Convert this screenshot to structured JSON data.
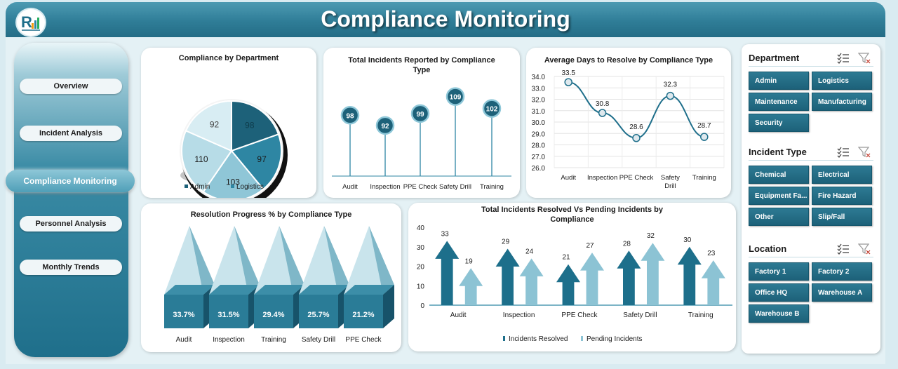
{
  "header": {
    "title": "Compliance Monitoring"
  },
  "nav": {
    "items": [
      "Overview",
      "Incident Analysis",
      "Compliance Monitoring",
      "Personnel Analysis",
      "Monthly Trends"
    ],
    "active": "Compliance Monitoring"
  },
  "colors": {
    "dark_teal": "#1d6179",
    "mid_teal": "#2e86a3",
    "light_teal": "#a9d5e2",
    "pale_teal": "#d4ecf3",
    "header": "#2f7d97"
  },
  "charts": {
    "pie": {
      "title": "Compliance by Department",
      "legend": [
        "Admin",
        "Logistics"
      ],
      "chart_data": {
        "type": "pie",
        "title": "Compliance by Department",
        "categories": [
          "Admin",
          "Logistics",
          "",
          "",
          ""
        ],
        "values": [
          98,
          97,
          103,
          110,
          92
        ],
        "labels": [
          "98",
          "97",
          "103",
          "110",
          "92"
        ]
      }
    },
    "lollipop": {
      "title": "Total Incidents Reported by Compliance Type",
      "chart_data": {
        "type": "bar",
        "title": "Total Incidents Reported by Compliance Type",
        "categories": [
          "Audit",
          "Inspection",
          "PPE Check",
          "Safety Drill",
          "Training"
        ],
        "values": [
          98,
          92,
          99,
          109,
          102
        ]
      }
    },
    "line": {
      "title": "Average Days to Resolve by Compliance Type",
      "chart_data": {
        "type": "line",
        "title": "Average Days to Resolve by Compliance Type",
        "categories": [
          "Audit",
          "Inspection",
          "PPE Check",
          "Safety Drill",
          "Training"
        ],
        "values": [
          33.5,
          30.8,
          28.6,
          32.3,
          28.7
        ],
        "ylim": [
          26.0,
          34.0
        ],
        "yticks": [
          "34.0",
          "33.0",
          "32.0",
          "31.0",
          "30.0",
          "29.0",
          "28.0",
          "27.0",
          "26.0"
        ],
        "grid": true
      }
    },
    "pyramid": {
      "title": "Resolution Progress % by Compliance Type",
      "chart_data": {
        "type": "bar",
        "title": "Resolution Progress % by Compliance Type",
        "categories": [
          "Audit",
          "Inspection",
          "Training",
          "Safety Drill",
          "PPE Check"
        ],
        "values": [
          33.7,
          31.5,
          29.4,
          25.7,
          21.2
        ],
        "labels": [
          "33.7%",
          "31.5%",
          "29.4%",
          "25.7%",
          "21.2%"
        ]
      }
    },
    "arrows": {
      "title": "Total Incidents Resolved Vs Pending Incidents by Compliance",
      "chart_data": {
        "type": "bar",
        "title": "Total Incidents Resolved Vs Pending Incidents by Compliance",
        "categories": [
          "Audit",
          "Inspection",
          "PPE Check",
          "Safety Drill",
          "Training"
        ],
        "series": [
          {
            "name": "Incidents Resolved",
            "values": [
              33,
              29,
              21,
              28,
              30
            ]
          },
          {
            "name": "Pending  Incidents",
            "values": [
              19,
              24,
              27,
              32,
              23
            ]
          }
        ],
        "ylim": [
          0,
          40
        ],
        "yticks": [
          "40",
          "30",
          "20",
          "10",
          "0"
        ],
        "legend": "bottom"
      }
    }
  },
  "slicers": [
    {
      "title": "Department",
      "items": [
        "Admin",
        "Logistics",
        "Maintenance",
        "Manufacturing",
        "Security"
      ]
    },
    {
      "title": "Incident Type",
      "items": [
        "Chemical",
        "Electrical",
        "Equipment Fa...",
        "Fire Hazard",
        "Other",
        "Slip/Fall"
      ]
    },
    {
      "title": "Location",
      "items": [
        "Factory 1",
        "Factory 2",
        "Office HQ",
        "Warehouse A",
        "Warehouse B"
      ]
    }
  ]
}
